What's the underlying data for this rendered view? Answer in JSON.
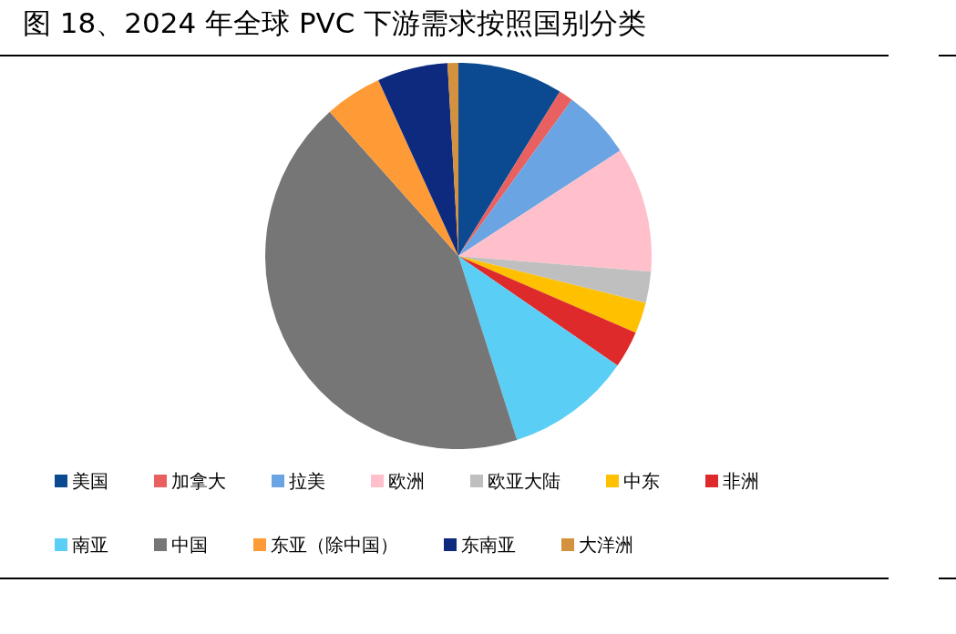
{
  "chart_data": {
    "type": "pie",
    "title": "图 18、2024 年全球 PVC 下游需求按照国别分类",
    "categories": [
      "美国",
      "加拿大",
      "拉美",
      "欧洲",
      "欧亚大陆",
      "中东",
      "非洲",
      "南亚",
      "中国",
      "东亚（除中国）",
      "东南亚",
      "大洋洲"
    ],
    "values": [
      8.8,
      1.2,
      5.8,
      10.5,
      2.6,
      2.6,
      3.1,
      10.5,
      43.3,
      4.8,
      5.9,
      0.9
    ],
    "colors": [
      "#0b4a91",
      "#e8605f",
      "#6aa4e3",
      "#ffc0cb",
      "#bfbfbf",
      "#ffc000",
      "#de2a2a",
      "#5bcef5",
      "#767676",
      "#ff9b36",
      "#0d2a7e",
      "#d4913e"
    ],
    "legend": "bottom"
  }
}
